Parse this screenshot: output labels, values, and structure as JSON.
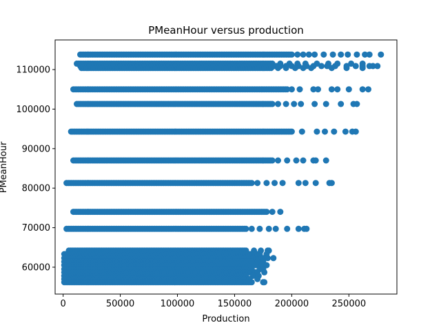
{
  "chart_data": {
    "type": "scatter",
    "title": "PMeanHour versus production",
    "xlabel": "Production",
    "ylabel": "PMeanHour",
    "xlim": [
      -7000,
      292000
    ],
    "ylim": [
      53200,
      117500
    ],
    "xticks": [
      0,
      50000,
      100000,
      150000,
      200000,
      250000
    ],
    "xtick_labels": [
      "0",
      "50000",
      "100000",
      "150000",
      "200000",
      "250000"
    ],
    "yticks": [
      60000,
      70000,
      80000,
      90000,
      100000,
      110000
    ],
    "ytick_labels": [
      "60000",
      "70000",
      "80000",
      "90000",
      "100000",
      "110000"
    ],
    "grid": false,
    "marker_color": "#1f77b4",
    "series": [
      {
        "bands": [
          {
            "y": 113800,
            "dense_x": [
              15000,
              200000
            ],
            "sparse_x": [
              205000,
              210000,
              215000,
              220000,
              228000,
              236000,
              243000,
              249000,
              257000,
              264000,
              268000,
              278000
            ]
          },
          {
            "y": 111500,
            "dense_x": [
              12000,
              183000
            ],
            "sparse_x": [
              190000,
              198000,
              205000,
              212000,
              222000,
              232000,
              240000,
              252000,
              262000
            ]
          },
          {
            "y": 110900,
            "dense_x": [
              15000,
              190000
            ],
            "sparse_x": [
              195000,
              200000,
              206000,
              213000,
              219000,
              226000,
              231000,
              238000,
              248000,
              256000,
              262000,
              268000,
              271000,
              275000
            ]
          },
          {
            "y": 110400,
            "dense_x": [
              16000,
              182000
            ],
            "sparse_x": [
              188000,
              195000,
              203000,
              210000,
              217000,
              235000,
              248000,
              262000
            ]
          },
          {
            "y": 105000,
            "dense_x": [
              9000,
              196000
            ],
            "sparse_x": [
              200000,
              207000,
              219000,
              223000,
              235000,
              240000,
              250000,
              262000,
              267000
            ]
          },
          {
            "y": 101300,
            "dense_x": [
              12000,
              183000
            ],
            "sparse_x": [
              188000,
              195000,
              202000,
              208000,
              220000,
              230000,
              243000,
              254000,
              257000
            ]
          },
          {
            "y": 94300,
            "dense_x": [
              7000,
              200000
            ],
            "sparse_x": [
              209000,
              222000,
              229000,
              237000,
              247000,
              253000,
              256000
            ]
          },
          {
            "y": 87000,
            "dense_x": [
              9000,
              183000
            ],
            "sparse_x": [
              188000,
              196000,
              204000,
              210000,
              219000,
              221000,
              230000
            ]
          },
          {
            "y": 81300,
            "dense_x": [
              3000,
              165000
            ],
            "sparse_x": [
              170000,
              178000,
              185000,
              192000,
              206000,
              212000,
              221000,
              233000,
              235000
            ]
          },
          {
            "y": 74000,
            "dense_x": [
              9000,
              178000
            ],
            "sparse_x": [
              183000,
              190000
            ]
          },
          {
            "y": 69700,
            "dense_x": [
              3000,
              160000
            ],
            "sparse_x": [
              165000,
              172000,
              180000,
              186000,
              196000,
              206000,
              211000,
              213000
            ]
          },
          {
            "y": 64200,
            "dense_x": [
              5000,
              160000
            ],
            "sparse_x": [
              167000,
              173000,
              179000,
              180000
            ]
          },
          {
            "y": 63300,
            "dense_x": [
              1000,
              170000
            ],
            "sparse_x": [
              172000,
              178000
            ]
          },
          {
            "y": 62300,
            "dense_x": [
              1000,
              175000
            ],
            "sparse_x": [
              179000,
              184000
            ]
          },
          {
            "y": 61400,
            "dense_x": [
              1000,
              165000
            ],
            "sparse_x": [
              170000,
              175000
            ]
          },
          {
            "y": 60500,
            "dense_x": [
              1000,
              170000
            ],
            "sparse_x": [
              174000,
              178000
            ]
          },
          {
            "y": 59500,
            "dense_x": [
              1000,
              160000
            ],
            "sparse_x": [
              165000,
              172000,
              175000
            ]
          },
          {
            "y": 58700,
            "dense_x": [
              1000,
              170000
            ],
            "sparse_x": [
              176000
            ]
          },
          {
            "y": 57800,
            "dense_x": [
              1000,
              160000
            ],
            "sparse_x": [
              166000,
              171000
            ]
          },
          {
            "y": 57000,
            "dense_x": [
              1000,
              158000
            ],
            "sparse_x": [
              163000,
              170000
            ]
          },
          {
            "y": 56200,
            "dense_x": [
              1000,
              165000
            ],
            "sparse_x": [
              175000,
              176000
            ]
          }
        ]
      }
    ]
  }
}
